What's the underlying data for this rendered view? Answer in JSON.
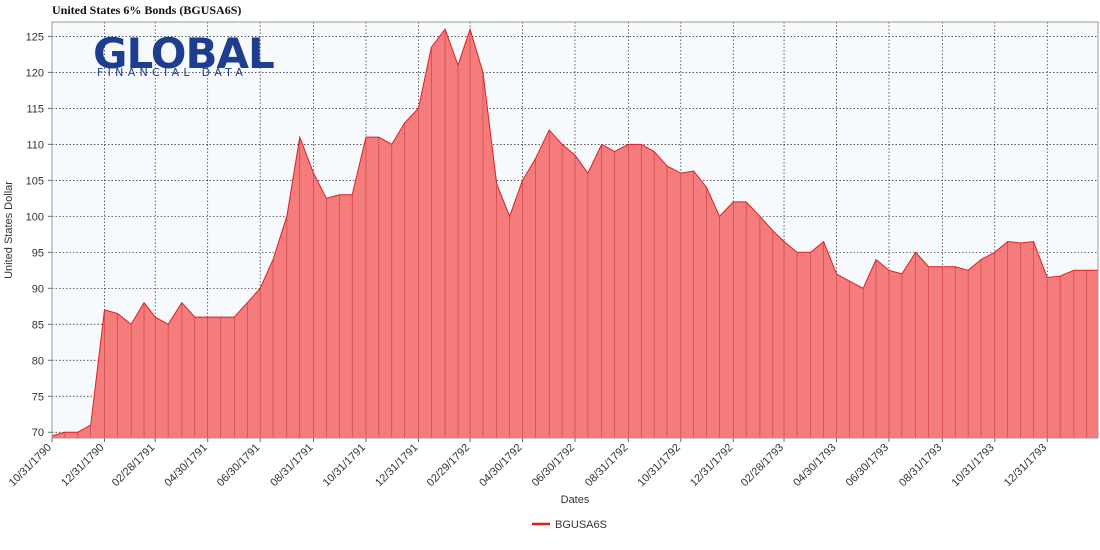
{
  "chart_data": {
    "type": "area",
    "title": "United States 6% Bonds (BGUSA6S)",
    "logo": {
      "main": "GLOBAL",
      "sub": "FINANCIAL DATA"
    },
    "x_label": "Dates",
    "y_label": "United States Dollar",
    "legend_position": "bottom",
    "grid": true,
    "x": [
      "10/31/1790",
      "11/15/1790",
      "11/30/1790",
      "12/15/1790",
      "12/31/1790",
      "01/15/1791",
      "01/31/1791",
      "02/15/1791",
      "02/28/1791",
      "03/15/1791",
      "03/31/1791",
      "04/15/1791",
      "04/30/1791",
      "05/15/1791",
      "05/31/1791",
      "06/15/1791",
      "06/30/1791",
      "07/15/1791",
      "07/31/1791",
      "08/15/1791",
      "08/31/1791",
      "09/15/1791",
      "09/30/1791",
      "10/15/1791",
      "10/31/1791",
      "11/15/1791",
      "11/30/1791",
      "12/15/1791",
      "12/31/1791",
      "01/15/1792",
      "01/31/1792",
      "02/15/1792",
      "02/29/1792",
      "03/15/1792",
      "03/31/1792",
      "04/15/1792",
      "04/30/1792",
      "05/15/1792",
      "05/31/1792",
      "06/15/1792",
      "06/30/1792",
      "07/15/1792",
      "07/31/1792",
      "08/15/1792",
      "08/31/1792",
      "09/15/1792",
      "09/30/1792",
      "10/15/1792",
      "10/31/1792",
      "11/15/1792",
      "11/30/1792",
      "12/15/1792",
      "12/31/1792",
      "01/15/1793",
      "01/31/1793",
      "02/15/1793",
      "02/28/1793",
      "03/15/1793",
      "03/31/1793",
      "04/15/1793",
      "04/30/1793",
      "05/15/1793",
      "05/31/1793",
      "06/15/1793",
      "06/30/1793",
      "07/15/1793",
      "07/31/1793",
      "08/15/1793",
      "08/31/1793",
      "09/15/1793",
      "09/30/1793",
      "10/15/1793",
      "10/31/1793",
      "11/15/1793",
      "11/30/1793",
      "12/15/1793",
      "12/31/1793",
      "01/15/1794",
      "01/31/1794",
      "02/15/1794",
      "02/28/1794"
    ],
    "series": [
      {
        "name": "BGUSA6S",
        "color": "#e02020",
        "fill": "#f47c7c",
        "values": [
          69.5,
          70,
          70,
          71,
          87,
          86.5,
          85,
          88,
          86,
          85,
          88,
          86,
          86,
          86,
          86,
          88,
          90,
          94,
          100,
          111,
          106,
          102.5,
          103,
          103,
          111,
          111,
          110,
          113,
          115,
          123.5,
          126,
          121,
          126,
          120,
          104.5,
          100,
          105,
          108,
          112,
          110,
          108.5,
          106,
          110,
          109,
          110,
          110,
          109,
          107,
          106,
          106.3,
          104,
          100,
          102,
          102,
          100,
          98,
          96.5,
          95,
          95,
          96.5,
          92,
          91,
          90,
          94,
          92.5,
          92,
          95,
          93,
          93,
          93,
          92.5,
          94,
          95,
          96.5,
          96.3,
          96.5,
          91.5,
          91.7,
          92.5,
          92.5,
          92.5
        ]
      }
    ],
    "xlim": [
      "10/31/1790",
      "02/28/1794"
    ],
    "xticks": [
      "10/31/1790",
      "12/31/1790",
      "02/28/1791",
      "04/30/1791",
      "06/30/1791",
      "08/31/1791",
      "10/31/1791",
      "12/31/1791",
      "02/29/1792",
      "04/30/1792",
      "06/30/1792",
      "08/31/1792",
      "10/31/1792",
      "12/31/1792",
      "02/28/1793",
      "04/30/1793",
      "06/30/1793",
      "08/31/1793",
      "10/31/1793",
      "12/31/1793"
    ],
    "ylim": [
      69.2,
      127
    ],
    "yticks": [
      70,
      75,
      80,
      85,
      90,
      95,
      100,
      105,
      110,
      115,
      120,
      125
    ]
  }
}
